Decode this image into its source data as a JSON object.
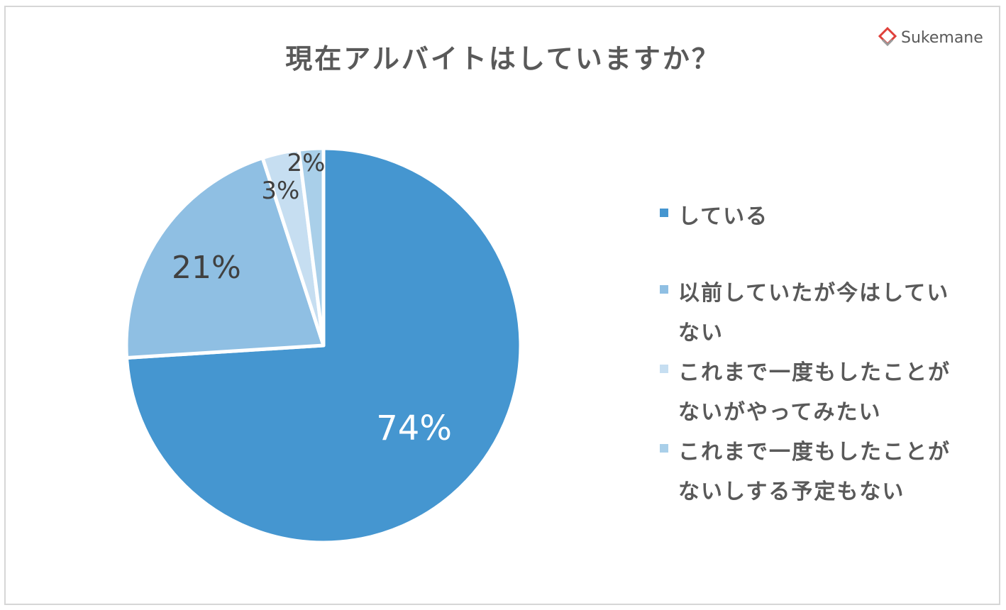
{
  "title": "現在アルバイトはしていますか？",
  "brand": {
    "name": "Sukemane",
    "logo_icon": "sukemane-diamond-icon",
    "logo_color": "#e0403a"
  },
  "chart_data": {
    "type": "pie",
    "title": "現在アルバイトはしていますか？",
    "labels": [
      "している",
      "以前していたが今はしていない",
      "これまで一度もしたことがないがやってみたい",
      "これまで一度もしたことがないしする予定もない"
    ],
    "values": [
      74,
      21,
      3,
      2
    ],
    "data_labels": [
      "74%",
      "21%",
      "3%",
      "2%"
    ],
    "colors": [
      "#4596d0",
      "#8fbfe3",
      "#c6def1",
      "#a9cfe9"
    ],
    "legend_position": "right",
    "start_angle": "12 o'clock",
    "direction": "clockwise"
  },
  "legend": {
    "items": [
      {
        "lines": [
          "している"
        ],
        "color": "#4596d0"
      },
      {
        "lines": [
          "以前していたが今はしてい",
          "ない"
        ],
        "color": "#8fbfe3"
      },
      {
        "lines": [
          "これまで一度もしたことが",
          "ないがやってみたい"
        ],
        "color": "#c6def1"
      },
      {
        "lines": [
          "これまで一度もしたことが",
          "ないしする予定もない"
        ],
        "color": "#a9cfe9"
      }
    ]
  }
}
